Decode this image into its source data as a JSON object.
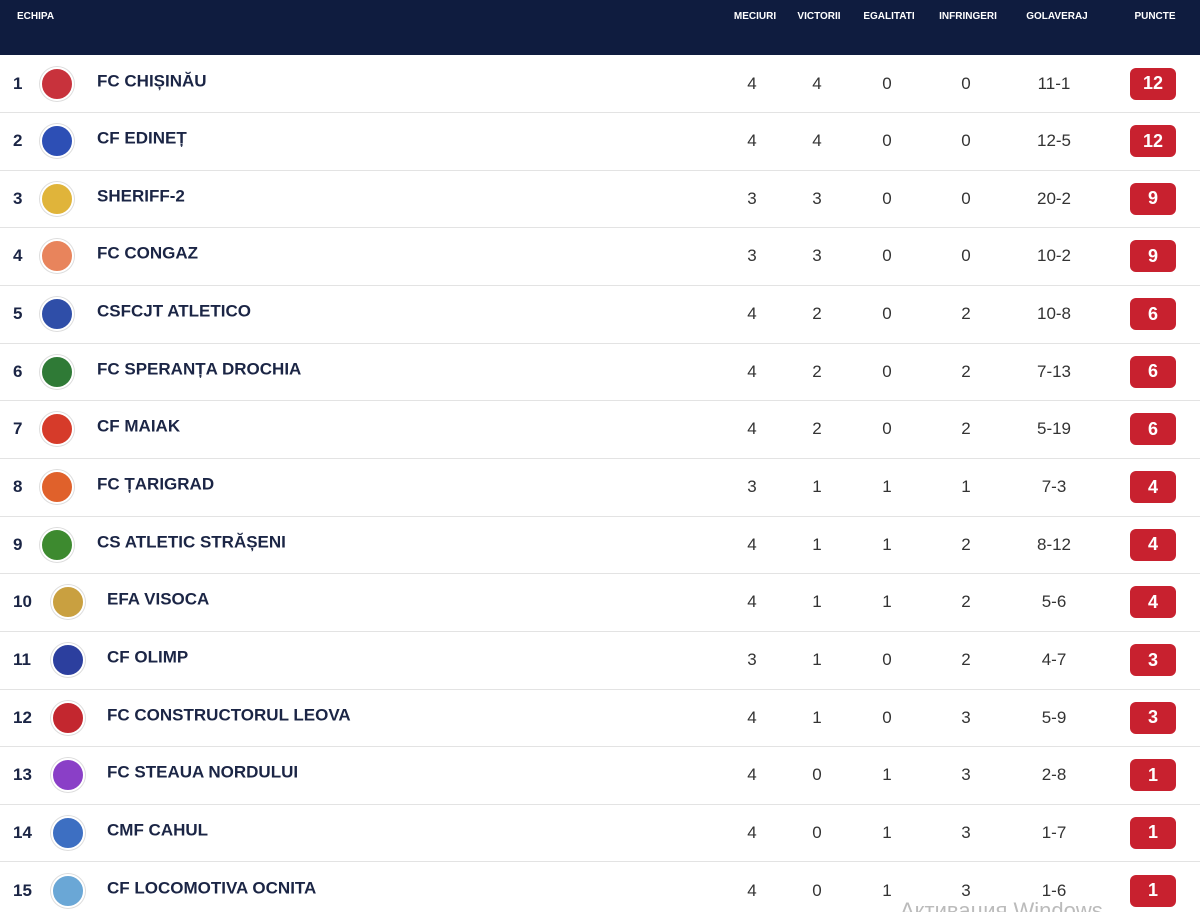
{
  "table": {
    "headers": [
      "ECHIPA",
      "MECIURI",
      "VICTORII",
      "EGALITATI",
      "INFRINGERI",
      "GOLAVERAJ",
      "PUNCTE"
    ],
    "rows": [
      [
        1,
        "FC CHIȘINĂU",
        4,
        4,
        0,
        0,
        "11-1",
        12
      ],
      [
        2,
        "CF EDINEȚ",
        4,
        4,
        0,
        0,
        "12-5",
        12
      ],
      [
        3,
        "SHERIFF-2",
        3,
        3,
        0,
        0,
        "20-2",
        9
      ],
      [
        4,
        "FC CONGAZ",
        3,
        3,
        0,
        0,
        "10-2",
        9
      ],
      [
        5,
        "CSFCJT ATLETICO",
        4,
        2,
        0,
        2,
        "10-8",
        6
      ],
      [
        6,
        "FC SPERANȚA DROCHIA",
        4,
        2,
        0,
        2,
        "7-13",
        6
      ],
      [
        7,
        "CF MAIAK",
        4,
        2,
        0,
        2,
        "5-19",
        6
      ],
      [
        8,
        "FC ȚARIGRAD",
        3,
        1,
        1,
        1,
        "7-3",
        4
      ],
      [
        9,
        "CS ATLETIC STRĂȘENI",
        4,
        1,
        1,
        2,
        "8-12",
        4
      ],
      [
        10,
        "EFA VISOCA",
        4,
        1,
        1,
        2,
        "5-6",
        4
      ],
      [
        11,
        "CF OLIMP",
        3,
        1,
        0,
        2,
        "4-7",
        3
      ],
      [
        12,
        "FC CONSTRUCTORUL LEOVA",
        4,
        1,
        0,
        3,
        "5-9",
        3
      ],
      [
        13,
        "FC STEAUA NORDULUI",
        4,
        0,
        1,
        3,
        "2-8",
        1
      ],
      [
        14,
        "CMF CAHUL",
        4,
        0,
        1,
        3,
        "1-7",
        1
      ],
      [
        15,
        "CF LOCOMOTIVA OCNITA",
        4,
        0,
        1,
        3,
        "1-6",
        1
      ]
    ]
  },
  "watermark": "Активация Windows"
}
